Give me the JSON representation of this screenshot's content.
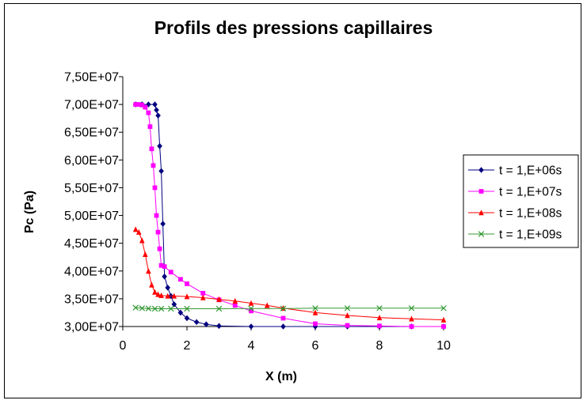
{
  "chart_data": {
    "type": "scatter",
    "title": "Profils des pressions capillaires",
    "xlabel": "X (m)",
    "ylabel": "Pc (Pa)",
    "xlim": [
      0,
      10
    ],
    "ylim": [
      30000000,
      75000000
    ],
    "x_ticks": [
      0,
      2,
      4,
      6,
      8,
      10
    ],
    "x_tick_labels": [
      "0",
      "2",
      "4",
      "6",
      "8",
      "10"
    ],
    "y_ticks": [
      30000000,
      35000000,
      40000000,
      45000000,
      50000000,
      55000000,
      60000000,
      65000000,
      70000000,
      75000000
    ],
    "y_tick_labels": [
      "3,00E+07",
      "3,50E+07",
      "4,00E+07",
      "4,50E+07",
      "5,00E+07",
      "5,50E+07",
      "6,00E+07",
      "6,50E+07",
      "7,00E+07",
      "7,50E+07"
    ],
    "grid": false,
    "legend_position": "right",
    "series": [
      {
        "name": "t = 1,E+06s",
        "color": "#000080",
        "marker": "diamond",
        "x": [
          0.4,
          0.6,
          0.8,
          1.0,
          1.05,
          1.1,
          1.15,
          1.2,
          1.25,
          1.3,
          1.4,
          1.5,
          1.6,
          1.8,
          2.0,
          2.3,
          2.6,
          3.0,
          4.0,
          5.0,
          6.0,
          7.0,
          8.0,
          9.0,
          10.0
        ],
        "y": [
          70000000,
          70000000,
          70000000,
          70000000,
          69000000,
          68000000,
          62500000,
          58000000,
          48500000,
          39000000,
          37000000,
          35500000,
          34000000,
          32500000,
          31500000,
          30800000,
          30400000,
          30100000,
          30000000,
          30000000,
          30000000,
          30000000,
          30000000,
          30000000,
          30000000
        ]
      },
      {
        "name": "t = 1,E+07s",
        "color": "#FF00FF",
        "marker": "square",
        "x": [
          0.4,
          0.5,
          0.6,
          0.7,
          0.8,
          0.85,
          0.9,
          0.95,
          1.0,
          1.05,
          1.1,
          1.15,
          1.2,
          1.3,
          1.5,
          1.8,
          2.0,
          2.5,
          3.0,
          3.5,
          4.0,
          5.0,
          6.0,
          7.0,
          8.0,
          9.0,
          10.0
        ],
        "y": [
          70000000,
          70000000,
          69900000,
          69500000,
          68500000,
          66000000,
          62000000,
          59000000,
          55000000,
          50000000,
          47000000,
          44000000,
          41000000,
          40800000,
          39800000,
          38500000,
          37700000,
          36000000,
          34800000,
          33800000,
          32800000,
          31500000,
          30500000,
          30200000,
          30100000,
          30000000,
          30000000
        ]
      },
      {
        "name": "t = 1,E+08s",
        "color": "#FF0000",
        "marker": "triangle",
        "x": [
          0.4,
          0.5,
          0.6,
          0.7,
          0.8,
          0.9,
          1.0,
          1.1,
          1.2,
          1.4,
          1.6,
          2.0,
          2.5,
          3.0,
          3.5,
          4.0,
          4.5,
          5.0,
          6.0,
          7.0,
          8.0,
          9.0,
          10.0
        ],
        "y": [
          47500000,
          47000000,
          45500000,
          43000000,
          40000000,
          37500000,
          36200000,
          35800000,
          35600000,
          35500000,
          35500000,
          35400000,
          35200000,
          34900000,
          34600000,
          34200000,
          33800000,
          33300000,
          32500000,
          32000000,
          31600000,
          31400000,
          31200000
        ]
      },
      {
        "name": "t = 1,E+09s",
        "color": "#339933",
        "marker": "x",
        "x": [
          0.4,
          0.6,
          0.8,
          1.0,
          1.2,
          1.5,
          2.0,
          3.0,
          4.0,
          5.0,
          6.0,
          7.0,
          8.0,
          9.0,
          10.0
        ],
        "y": [
          33400000,
          33300000,
          33250000,
          33200000,
          33200000,
          33200000,
          33200000,
          33200000,
          33250000,
          33250000,
          33300000,
          33300000,
          33300000,
          33300000,
          33300000
        ]
      }
    ]
  }
}
